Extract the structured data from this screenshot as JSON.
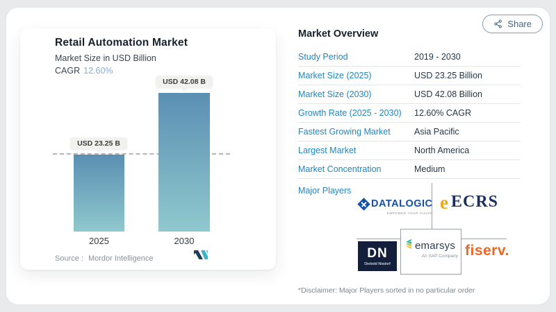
{
  "share": {
    "label": "Share"
  },
  "chart_panel": {
    "title": "Retail Automation Market",
    "subtitle": "Market Size in USD Billion",
    "cagr_label": "CAGR",
    "cagr_value": "12.60%",
    "source_label": "Source :",
    "source_value": "Mordor Intelligence"
  },
  "chart_data": {
    "type": "bar",
    "categories": [
      "2025",
      "2030"
    ],
    "values": [
      23.25,
      42.08
    ],
    "bar_labels": [
      "USD 23.25 B",
      "USD 42.08 B"
    ],
    "title": "Retail Automation Market",
    "ylabel": "Market Size in USD Billion",
    "ylim": [
      0,
      45
    ],
    "reference_line": 23.25,
    "legend": [],
    "grid": "off",
    "bar_gradient_top": "#5a8fb3",
    "bar_gradient_bottom": "#8fc9cd"
  },
  "overview": {
    "title": "Market Overview",
    "rows": [
      {
        "label": "Study Period",
        "value": "2019 - 2030"
      },
      {
        "label": "Market Size (2025)",
        "value": "USD 23.25 Billion"
      },
      {
        "label": "Market Size (2030)",
        "value": "USD 42.08 Billion"
      },
      {
        "label": "Growth Rate (2025 - 2030)",
        "value": "12.60% CAGR"
      },
      {
        "label": "Fastest Growing Market",
        "value": "Asia Pacific"
      },
      {
        "label": "Largest Market",
        "value": "North America"
      },
      {
        "label": "Market Concentration",
        "value": "Medium"
      }
    ],
    "major_players_label": "Major Players",
    "disclaimer": "*Disclaimer: Major Players sorted in no particular order"
  },
  "logos": {
    "datalogic": {
      "text": "DATALOGIC",
      "tagline": "EMPOWER YOUR VISION"
    },
    "ecrs": {
      "icon": "e",
      "text": "ECRS"
    },
    "diebold": {
      "monogram": "DN",
      "text": "Diebold Nixdorf"
    },
    "emarsys": {
      "text": "emarsys",
      "subtext": "An SAP Company"
    },
    "fiserv": {
      "text": "fiserv."
    }
  },
  "colors": {
    "label_blue": "#1f86c0",
    "value_dark": "#253746",
    "cagr_light_blue": "#84aed2",
    "share_steel": "#44677f",
    "datalogic_blue": "#1450a8",
    "ecrs_navy": "#1b2f5e",
    "ecrs_orange": "#f2a71b",
    "diebold_navy": "#131f3a",
    "fiserv_orange": "#f26522",
    "mi_navy": "#20395f",
    "mi_teal": "#3db3c9"
  }
}
